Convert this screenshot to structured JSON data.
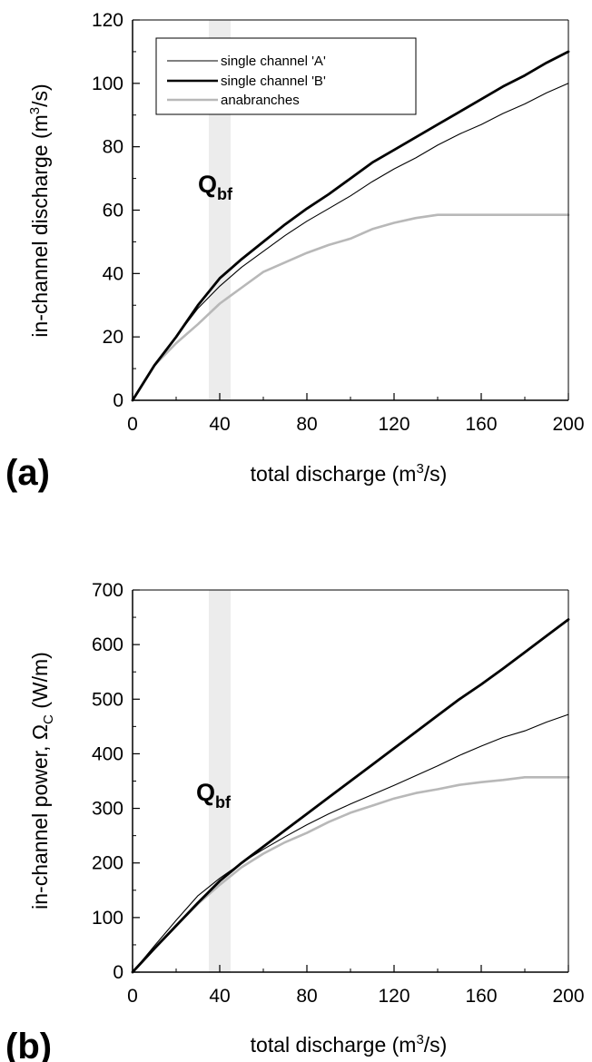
{
  "chart_data": [
    {
      "panel": "(a)",
      "type": "line",
      "xlabel": "total discharge (m",
      "xlabel_sup": "3",
      "xlabel_tail": "/s)",
      "ylabel": "in-channel discharge (m",
      "ylabel_sup": "3",
      "ylabel_tail": "/s)",
      "xlim": [
        0,
        200
      ],
      "ylim": [
        0,
        120
      ],
      "xticks": [
        "0",
        "40",
        "80",
        "120",
        "160",
        "200"
      ],
      "yticks": [
        "0",
        "20",
        "40",
        "60",
        "80",
        "100",
        "120"
      ],
      "grid": false,
      "legend_position": "top-left",
      "band": {
        "x0": 35,
        "x1": 45,
        "label_main": "Q",
        "label_sub": "bf"
      },
      "x": [
        0,
        10,
        20,
        30,
        40,
        50,
        60,
        70,
        80,
        90,
        100,
        110,
        120,
        130,
        140,
        150,
        160,
        170,
        180,
        190,
        200
      ],
      "series": [
        {
          "name": "single channel 'A'",
          "style": "thin",
          "values": [
            0,
            11,
            20,
            29,
            36,
            42,
            47,
            52,
            56.5,
            60.5,
            64.5,
            69,
            73,
            76.5,
            80.5,
            84,
            87,
            90.5,
            93.5,
            97,
            100
          ]
        },
        {
          "name": "single channel 'B'",
          "style": "thick",
          "values": [
            0,
            11,
            20,
            30,
            38.5,
            44.5,
            50,
            55.5,
            60.5,
            65,
            70,
            75,
            79,
            83,
            87,
            91,
            95,
            99,
            102.5,
            106.5,
            110
          ]
        },
        {
          "name": "anabranches",
          "style": "grey",
          "values": [
            0,
            11,
            18,
            24,
            30.5,
            35.5,
            40.5,
            43.5,
            46.5,
            49,
            51,
            54,
            56,
            57.5,
            58.5,
            58.5,
            58.5,
            58.5,
            58.5,
            58.5,
            58.5
          ]
        }
      ]
    },
    {
      "panel": "(b)",
      "type": "line",
      "xlabel": "total discharge (m",
      "xlabel_sup": "3",
      "xlabel_tail": "/s)",
      "ylabel": "in-channel power, Ω",
      "ylabel_sub": "C",
      "ylabel_tail": " (W/m)",
      "xlim": [
        0,
        200
      ],
      "ylim": [
        0,
        700
      ],
      "xticks": [
        "0",
        "40",
        "80",
        "120",
        "160",
        "200"
      ],
      "yticks": [
        "0",
        "100",
        "200",
        "300",
        "400",
        "500",
        "600",
        "700"
      ],
      "grid": false,
      "band": {
        "x0": 35,
        "x1": 45,
        "label_main": "Q",
        "label_sub": "bf"
      },
      "x": [
        0,
        10,
        20,
        30,
        40,
        50,
        60,
        70,
        80,
        90,
        100,
        110,
        120,
        130,
        140,
        150,
        160,
        170,
        180,
        190,
        200
      ],
      "series": [
        {
          "name": "single channel 'A'",
          "style": "thin",
          "values": [
            0,
            48,
            95,
            140,
            172,
            200,
            225,
            248,
            270,
            290,
            308,
            325,
            342,
            360,
            378,
            397,
            414,
            430,
            442,
            458,
            472
          ]
        },
        {
          "name": "single channel 'B'",
          "style": "thick",
          "values": [
            0,
            43,
            85,
            127,
            167,
            200,
            230,
            260,
            290,
            320,
            350,
            380,
            410,
            440,
            470,
            500,
            527,
            556,
            586,
            616,
            646
          ]
        },
        {
          "name": "anabranches",
          "style": "grey",
          "values": [
            0,
            43,
            85,
            125,
            160,
            192,
            217,
            238,
            255,
            275,
            292,
            305,
            318,
            328,
            335,
            343,
            348,
            352,
            357,
            357,
            357
          ]
        }
      ]
    }
  ]
}
